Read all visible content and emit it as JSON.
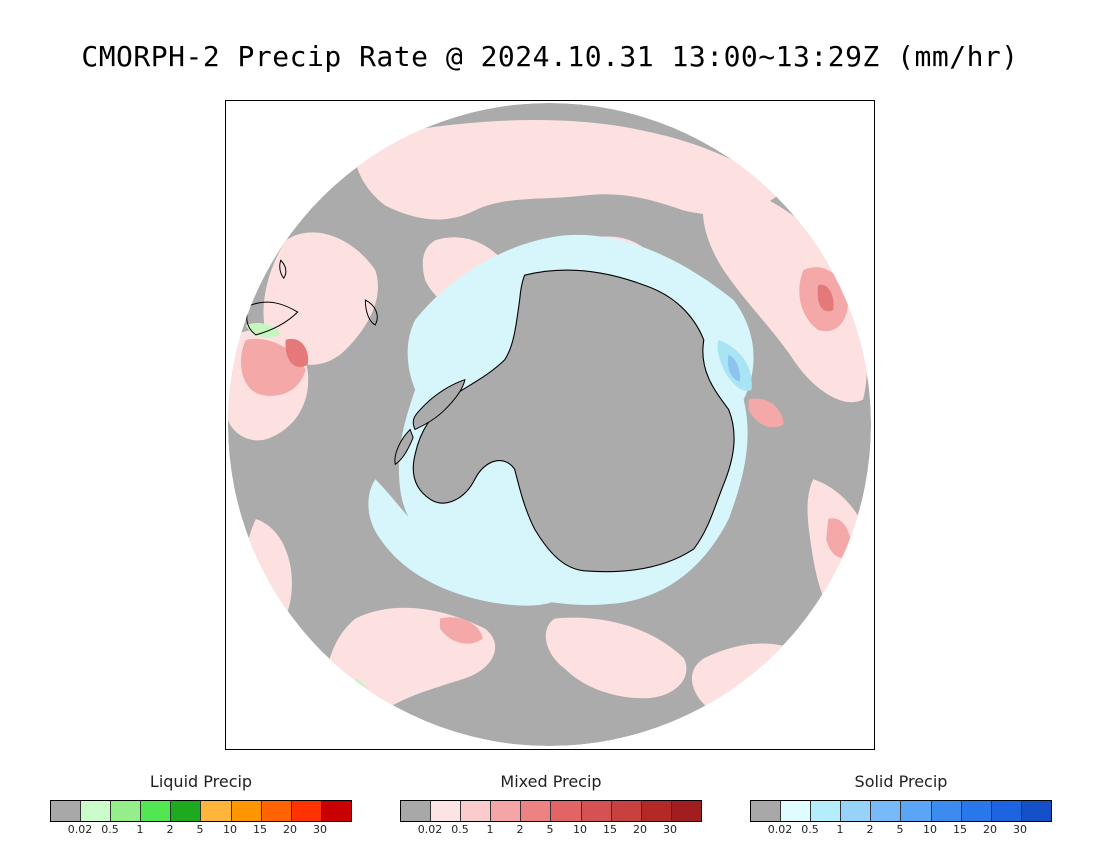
{
  "title": "CMORPH-2 Precip Rate @ 2024.10.31 13:00~13:29Z (mm/hr)",
  "map": {
    "projection": "south-polar-stereographic",
    "colors": {
      "no_precip": "#ababab",
      "outside": "#ffffff",
      "coastline": "#000000",
      "mixed_light": "#fde0e0",
      "mixed_medium": "#f5a8a8",
      "mixed_strong": "#e57878",
      "solid_light": "#d6f6fb",
      "solid_medium": "#a8e4f4",
      "solid_strong": "#8ec2f0",
      "liquid_light": "#c6f5c0"
    }
  },
  "legends": [
    {
      "id": "liquid",
      "title": "Liquid Precip",
      "colors": [
        "#a8a8a8",
        "#ccfccc",
        "#96ee8a",
        "#52e652",
        "#1eaa1e",
        "#ffb43c",
        "#ff9600",
        "#ff6400",
        "#ff3200",
        "#c80000"
      ],
      "tick_labels": [
        "0.02",
        "0.5",
        "1",
        "2",
        "5",
        "10",
        "15",
        "20",
        "30"
      ]
    },
    {
      "id": "mixed",
      "title": "Mixed Precip",
      "colors": [
        "#a8a8a8",
        "#fde4e4",
        "#fbcccc",
        "#f5a5a5",
        "#ec8282",
        "#e26464",
        "#d55252",
        "#c84040",
        "#b42828",
        "#a01e1e"
      ],
      "tick_labels": [
        "0.02",
        "0.5",
        "1",
        "2",
        "5",
        "10",
        "15",
        "20",
        "30"
      ]
    },
    {
      "id": "solid",
      "title": "Solid Precip",
      "colors": [
        "#a8a8a8",
        "#e0fcff",
        "#b4eefc",
        "#96d2fa",
        "#78b9fa",
        "#5aa5f5",
        "#3c8cf0",
        "#2878eb",
        "#1e64e1",
        "#1450c8"
      ],
      "tick_labels": [
        "0.02",
        "0.5",
        "1",
        "2",
        "5",
        "10",
        "15",
        "20",
        "30"
      ]
    }
  ]
}
